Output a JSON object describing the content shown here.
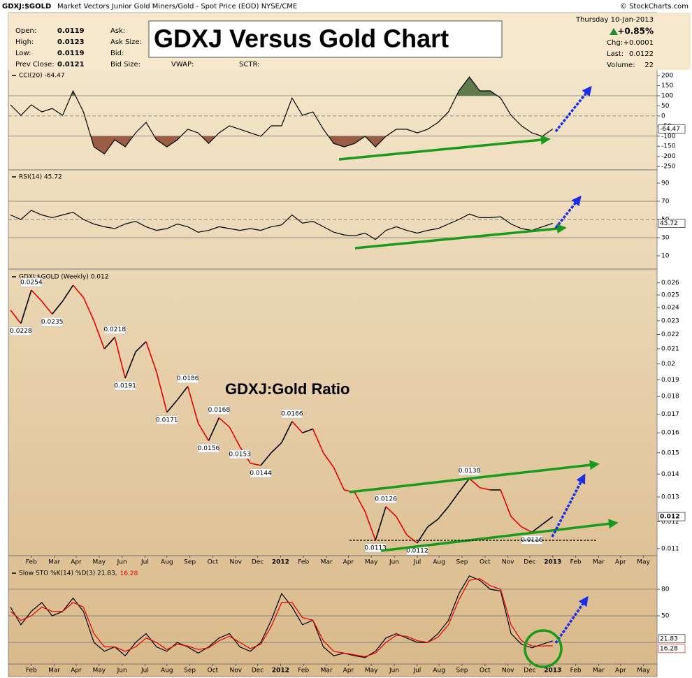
{
  "header": {
    "symbol": "GDXJ:$GOLD",
    "description": "Market Vectors Junior Gold Miners/Gold - Spot Price (EOD) NYSE/CME",
    "credit": "© StockCharts.com",
    "title_box": "GDXJ Versus Gold Chart",
    "quote": [
      [
        "Open:",
        "0.0119"
      ],
      [
        "High:",
        "0.0123"
      ],
      [
        "Low:",
        "0.0119"
      ],
      [
        "Prev Close:",
        "0.0121"
      ]
    ],
    "fields": [
      "Ask:",
      "Ask Size:",
      "Bid:",
      "Bid Size:",
      "VWAP:",
      "SCTR:"
    ],
    "date": "Thursday  10-Jan-2013",
    "change_pct": "+0.85%",
    "stats": [
      [
        "Chg:",
        "+0.0001"
      ],
      [
        "Last:",
        "0.0122"
      ],
      [
        "Volume:",
        "22"
      ]
    ]
  },
  "chart_data": [
    {
      "type": "line",
      "title": "CCI(20) -64.47",
      "xlim": [
        0,
        62
      ],
      "ylim": [
        -267,
        228
      ],
      "yticks": [
        200,
        150,
        100,
        50,
        0,
        -50,
        -100,
        -150,
        -200,
        -250
      ],
      "levels": [
        {
          "value": 100,
          "style": "solid"
        },
        {
          "value": 0,
          "style": "dashed"
        },
        {
          "value": -100,
          "style": "solid"
        }
      ],
      "series": [
        {
          "color": "#000000",
          "last_label": "-64.47",
          "fill_above": {
            "level": 100,
            "color": "#5f7a4c"
          },
          "fill_below": {
            "level": -100,
            "color": "#9b5c45"
          },
          "values": [
            55,
            3,
            55,
            20,
            37,
            3,
            124,
            20,
            -153,
            -188,
            -118,
            -153,
            -84,
            -32,
            -118,
            -153,
            -118,
            -66,
            -84,
            -136,
            -84,
            -49,
            -66,
            -84,
            -101,
            -49,
            -49,
            89,
            3,
            20,
            -66,
            -136,
            -153,
            -136,
            -101,
            -153,
            -101,
            -66,
            -66,
            -84,
            -66,
            -32,
            20,
            124,
            193,
            124,
            124,
            89,
            3,
            -49,
            -84,
            -101,
            -64.47
          ]
        }
      ]
    },
    {
      "type": "line",
      "title": "RSI(14) 45.72",
      "xlim": [
        0,
        62
      ],
      "ylim": [
        -4.6,
        103
      ],
      "yticks": [
        90,
        70,
        50,
        30,
        10
      ],
      "levels": [
        {
          "value": 70,
          "style": "solid"
        },
        {
          "value": 50,
          "style": "dashed"
        },
        {
          "value": 30,
          "style": "solid"
        }
      ],
      "series": [
        {
          "color": "#000000",
          "last_label": "45.72",
          "values": [
            55,
            50,
            60,
            55,
            52,
            55,
            58,
            50,
            45,
            42,
            40,
            45,
            48,
            42,
            38,
            40,
            45,
            42,
            36,
            38,
            42,
            40,
            38,
            40,
            38,
            42,
            44,
            55,
            46,
            48,
            42,
            36,
            33,
            32,
            35,
            28,
            38,
            42,
            38,
            35,
            38,
            40,
            45,
            50,
            56,
            52,
            52,
            53,
            45,
            40,
            38,
            42,
            45.72
          ]
        }
      ]
    },
    {
      "type": "line",
      "title": "GDXJ:$GOLD (Weekly) 0.012",
      "annotation": "GDXJ:Gold Ratio",
      "log": true,
      "xlim": [
        0,
        62
      ],
      "ylim": [
        0.01075,
        0.027
      ],
      "yticks": [
        0.026,
        0.025,
        0.024,
        0.023,
        0.022,
        0.021,
        0.02,
        0.019,
        0.018,
        0.017,
        0.016,
        0.015,
        0.014,
        0.013,
        0.012,
        0.011
      ],
      "xticks": [
        {
          "value": 2.0,
          "label": "Feb"
        },
        {
          "value": 4.2,
          "label": "Mar"
        },
        {
          "value": 6.3,
          "label": "Apr"
        },
        {
          "value": 8.5,
          "label": "May"
        },
        {
          "value": 10.7,
          "label": "Jun"
        },
        {
          "value": 12.9,
          "label": "Jul"
        },
        {
          "value": 15.0,
          "label": "Aug"
        },
        {
          "value": 17.2,
          "label": "Sep"
        },
        {
          "value": 19.4,
          "label": "Oct"
        },
        {
          "value": 21.6,
          "label": "Nov"
        },
        {
          "value": 23.7,
          "label": "Dec"
        },
        {
          "value": 25.9,
          "label": "2012"
        },
        {
          "value": 28.1,
          "label": "Feb"
        },
        {
          "value": 30.3,
          "label": "Mar"
        },
        {
          "value": 32.4,
          "label": "Apr"
        },
        {
          "value": 34.6,
          "label": "May"
        },
        {
          "value": 36.8,
          "label": "Jun"
        },
        {
          "value": 39.0,
          "label": "Jul"
        },
        {
          "value": 41.1,
          "label": "Aug"
        },
        {
          "value": 43.3,
          "label": "Sep"
        },
        {
          "value": 45.5,
          "label": "Oct"
        },
        {
          "value": 47.7,
          "label": "Nov"
        },
        {
          "value": 49.8,
          "label": "Dec"
        },
        {
          "value": 52.0,
          "label": "2013"
        },
        {
          "value": 54.2,
          "label": "Feb"
        },
        {
          "value": 56.4,
          "label": "Mar"
        },
        {
          "value": 58.5,
          "label": "Apr"
        },
        {
          "value": 60.7,
          "label": "May"
        }
      ],
      "series": [
        {
          "up_color": "#000000",
          "down_color": "#e00000",
          "last_label": "0.012",
          "values": [
            0.0238,
            0.0228,
            0.0254,
            0.0245,
            0.0235,
            0.0245,
            0.0258,
            0.0248,
            0.023,
            0.021,
            0.0218,
            0.0191,
            0.0208,
            0.0215,
            0.0195,
            0.0171,
            0.0178,
            0.0186,
            0.0165,
            0.0156,
            0.0168,
            0.0163,
            0.0153,
            0.0145,
            0.0144,
            0.015,
            0.0155,
            0.0166,
            0.016,
            0.0162,
            0.015,
            0.0143,
            0.0133,
            0.0132,
            0.0124,
            0.0113,
            0.0126,
            0.0122,
            0.0115,
            0.0112,
            0.0118,
            0.0121,
            0.0126,
            0.0132,
            0.0138,
            0.0134,
            0.0133,
            0.0133,
            0.0122,
            0.0118,
            0.0116,
            0.0119,
            0.0122
          ],
          "value_labels": [
            null,
            "0.0228",
            "0.0254",
            null,
            "0.0235",
            null,
            null,
            null,
            null,
            null,
            "0.0218",
            "0.0191",
            null,
            null,
            null,
            "0.0171",
            null,
            "0.0186",
            null,
            "0.0156",
            "0.0168",
            null,
            "0.0153",
            null,
            "0.0144",
            null,
            null,
            "0.0166",
            null,
            null,
            null,
            null,
            null,
            null,
            null,
            "0.0113",
            "0.0126",
            null,
            null,
            "0.0112",
            null,
            null,
            null,
            null,
            "0.0138",
            null,
            null,
            null,
            null,
            null,
            "0.0116",
            null,
            null
          ]
        }
      ]
    },
    {
      "type": "line",
      "title": "Slow STO %K(14) %D(3) 21.83,",
      "xlim": [
        0,
        62
      ],
      "ylim": [
        -4.3,
        104.4
      ],
      "yticks": [
        80,
        50
      ],
      "levels": [
        {
          "value": 80,
          "style": "solid"
        },
        {
          "value": 50,
          "style": "solid"
        },
        {
          "value": 20,
          "style": "solid"
        }
      ],
      "xticks": [
        {
          "value": 2.0,
          "label": "Feb"
        },
        {
          "value": 4.2,
          "label": "Mar"
        },
        {
          "value": 6.3,
          "label": "Apr"
        },
        {
          "value": 8.5,
          "label": "May"
        },
        {
          "value": 10.7,
          "label": "Jun"
        },
        {
          "value": 12.9,
          "label": "Jul"
        },
        {
          "value": 15.0,
          "label": "Aug"
        },
        {
          "value": 17.2,
          "label": "Sep"
        },
        {
          "value": 19.4,
          "label": "Oct"
        },
        {
          "value": 21.6,
          "label": "Nov"
        },
        {
          "value": 23.7,
          "label": "Dec"
        },
        {
          "value": 25.9,
          "label": "2012"
        },
        {
          "value": 28.1,
          "label": "Feb"
        },
        {
          "value": 30.3,
          "label": "Mar"
        },
        {
          "value": 32.4,
          "label": "Apr"
        },
        {
          "value": 34.6,
          "label": "May"
        },
        {
          "value": 36.8,
          "label": "Jun"
        },
        {
          "value": 39.0,
          "label": "Jul"
        },
        {
          "value": 41.1,
          "label": "Aug"
        },
        {
          "value": 43.3,
          "label": "Sep"
        },
        {
          "value": 45.5,
          "label": "Oct"
        },
        {
          "value": 47.7,
          "label": "Nov"
        },
        {
          "value": 49.8,
          "label": "Dec"
        },
        {
          "value": 52.0,
          "label": "2013"
        },
        {
          "value": 54.2,
          "label": "Feb"
        },
        {
          "value": 56.4,
          "label": "Mar"
        },
        {
          "value": 58.5,
          "label": "Apr"
        },
        {
          "value": 60.7,
          "label": "May"
        }
      ],
      "series": [
        {
          "color": "#000000",
          "last_label": "21.83",
          "values": [
            60,
            40,
            55,
            65,
            50,
            55,
            70,
            55,
            20,
            10,
            15,
            5,
            20,
            30,
            15,
            10,
            20,
            15,
            8,
            15,
            25,
            30,
            15,
            10,
            20,
            45,
            75,
            60,
            40,
            45,
            15,
            5,
            8,
            5,
            3,
            10,
            25,
            30,
            25,
            20,
            20,
            30,
            45,
            75,
            95,
            90,
            80,
            78,
            30,
            18,
            14,
            18,
            21.83
          ]
        },
        {
          "color": "#e00000",
          "last_label": "16.28",
          "values": [
            55,
            45,
            50,
            60,
            55,
            55,
            65,
            60,
            30,
            15,
            15,
            10,
            15,
            25,
            20,
            12,
            18,
            16,
            12,
            14,
            22,
            27,
            20,
            13,
            18,
            38,
            65,
            65,
            48,
            45,
            22,
            10,
            8,
            6,
            4,
            8,
            20,
            28,
            27,
            22,
            20,
            26,
            40,
            68,
            90,
            92,
            84,
            80,
            40,
            22,
            16,
            16,
            16.28
          ]
        }
      ]
    }
  ]
}
